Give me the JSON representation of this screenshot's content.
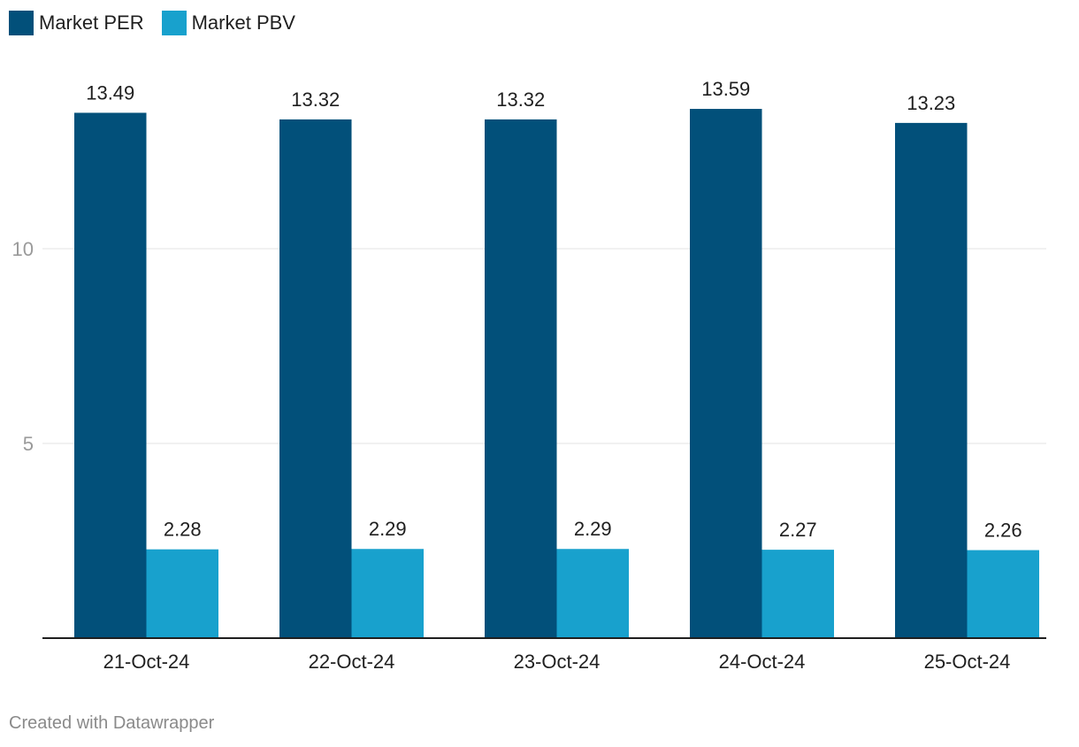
{
  "chart_data": {
    "type": "bar",
    "categories": [
      "21-Oct-24",
      "22-Oct-24",
      "23-Oct-24",
      "24-Oct-24",
      "25-Oct-24"
    ],
    "series": [
      {
        "name": "Market PER",
        "color": "#02507a",
        "values": [
          13.49,
          13.32,
          13.32,
          13.59,
          13.23
        ]
      },
      {
        "name": "Market PBV",
        "color": "#18a1cd",
        "values": [
          2.28,
          2.29,
          2.29,
          2.27,
          2.26
        ]
      }
    ],
    "yticks": [
      5,
      10
    ],
    "ylim": [
      0,
      15
    ],
    "grid": true,
    "legend": "top-left"
  },
  "legend": {
    "items": [
      {
        "label": "Market PER",
        "color": "#02507a"
      },
      {
        "label": "Market PBV",
        "color": "#18a1cd"
      }
    ]
  },
  "footer": {
    "credit": "Created with Datawrapper"
  }
}
